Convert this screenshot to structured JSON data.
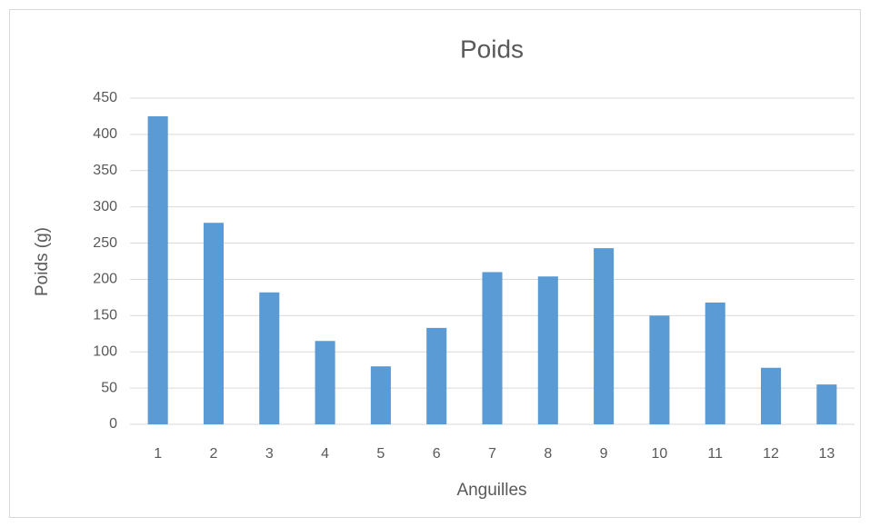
{
  "chart_data": {
    "type": "bar",
    "title": "Poids",
    "x_label": "Anguilles",
    "y_label": "Poids (g)",
    "categories": [
      "1",
      "2",
      "3",
      "4",
      "5",
      "6",
      "7",
      "8",
      "9",
      "10",
      "11",
      "12",
      "13"
    ],
    "values": [
      425,
      278,
      182,
      115,
      80,
      133,
      210,
      204,
      243,
      150,
      168,
      78,
      55
    ],
    "color": "#5b9bd5",
    "ylim": [
      0,
      450
    ],
    "yticks": [
      0,
      50,
      100,
      150,
      200,
      250,
      300,
      350,
      400,
      450
    ],
    "grid": true
  }
}
